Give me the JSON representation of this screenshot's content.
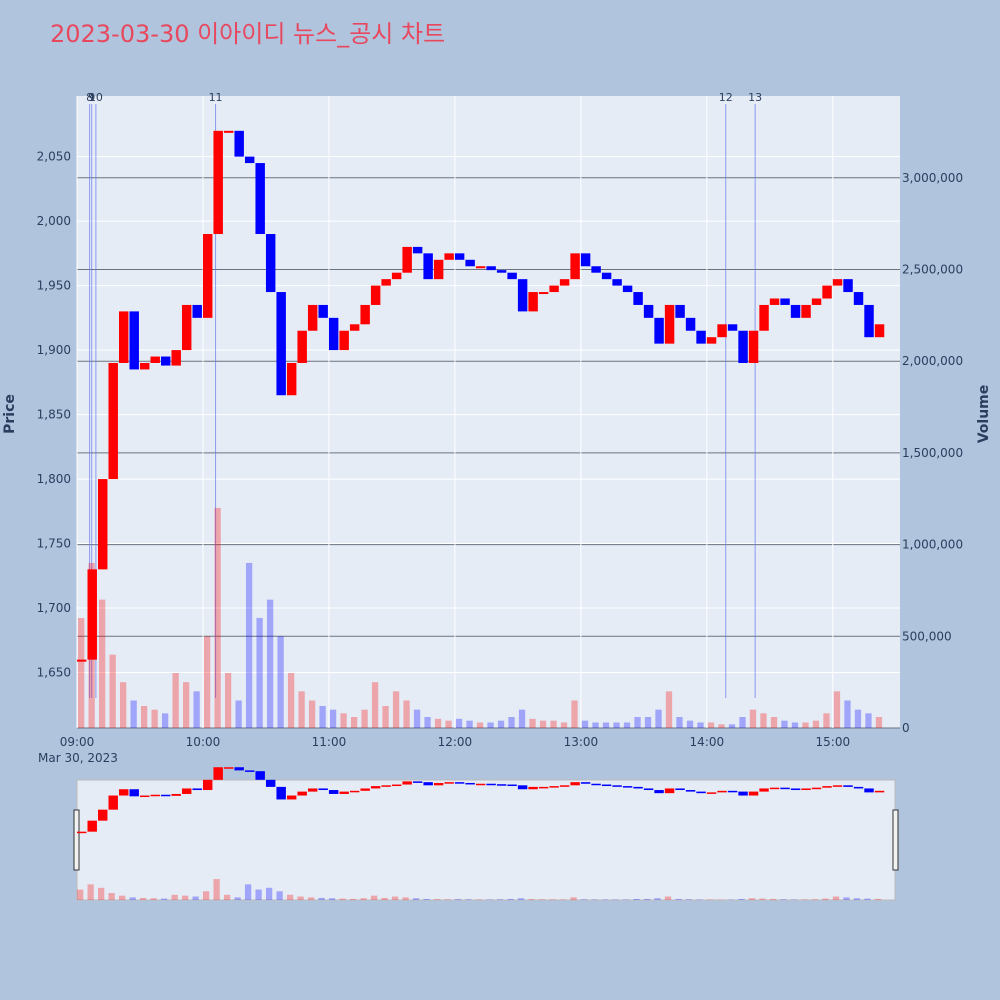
{
  "chart_data": {
    "type": "candlestick",
    "title": "2023-03-30 이아이디 뉴스_공시 차트",
    "y_label": "Price",
    "y2_label": "Volume",
    "x_date_label": "Mar 30, 2023",
    "up_color": "#ff0000",
    "down_color": "#0000ff",
    "x": [
      "09:00",
      "09:05",
      "09:10",
      "09:15",
      "09:20",
      "09:25",
      "09:30",
      "09:35",
      "09:40",
      "09:45",
      "09:50",
      "09:55",
      "10:00",
      "10:05",
      "10:10",
      "10:15",
      "10:20",
      "10:25",
      "10:30",
      "10:35",
      "10:40",
      "10:45",
      "10:50",
      "10:55",
      "11:00",
      "11:05",
      "11:10",
      "11:15",
      "11:20",
      "11:25",
      "11:30",
      "11:35",
      "11:40",
      "11:45",
      "11:50",
      "11:55",
      "12:00",
      "12:05",
      "12:10",
      "12:15",
      "12:20",
      "12:25",
      "12:30",
      "12:35",
      "12:40",
      "12:45",
      "12:50",
      "12:55",
      "13:00",
      "13:05",
      "13:10",
      "13:15",
      "13:20",
      "13:25",
      "13:30",
      "13:35",
      "13:40",
      "13:45",
      "13:50",
      "13:55",
      "14:00",
      "14:05",
      "14:10",
      "14:15",
      "14:20",
      "14:25",
      "14:30",
      "14:35",
      "14:40",
      "14:45",
      "14:50",
      "14:55",
      "15:00",
      "15:05",
      "15:10",
      "15:15",
      "15:20"
    ],
    "price": [
      1660,
      1730,
      1800,
      1890,
      1930,
      1885,
      1890,
      1895,
      1888,
      1900,
      1935,
      1925,
      1990,
      2070,
      2070,
      2050,
      2045,
      1990,
      1945,
      1865,
      1890,
      1915,
      1935,
      1925,
      1900,
      1915,
      1920,
      1935,
      1950,
      1955,
      1960,
      1980,
      1975,
      1955,
      1970,
      1975,
      1970,
      1965,
      1965,
      1962,
      1960,
      1955,
      1930,
      1945,
      1945,
      1950,
      1955,
      1975,
      1965,
      1960,
      1955,
      1950,
      1945,
      1935,
      1925,
      1905,
      1935,
      1925,
      1915,
      1905,
      1910,
      1920,
      1915,
      1890,
      1915,
      1935,
      1940,
      1935,
      1925,
      1935,
      1940,
      1950,
      1955,
      1945,
      1935,
      1910,
      1920
    ],
    "volume": [
      600000,
      900000,
      700000,
      400000,
      250000,
      150000,
      120000,
      100000,
      80000,
      300000,
      250000,
      200000,
      500000,
      1200000,
      300000,
      150000,
      900000,
      600000,
      700000,
      500000,
      300000,
      200000,
      150000,
      120000,
      100000,
      80000,
      60000,
      100000,
      250000,
      120000,
      200000,
      150000,
      100000,
      60000,
      50000,
      40000,
      50000,
      40000,
      30000,
      30000,
      40000,
      60000,
      100000,
      50000,
      40000,
      40000,
      30000,
      150000,
      40000,
      30000,
      30000,
      30000,
      30000,
      60000,
      60000,
      100000,
      200000,
      60000,
      40000,
      30000,
      30000,
      20000,
      20000,
      60000,
      100000,
      80000,
      60000,
      40000,
      30000,
      30000,
      40000,
      80000,
      200000,
      150000,
      100000,
      80000,
      60000
    ],
    "xlim": [
      "09:00",
      "15:32"
    ],
    "xticks": [
      "09:00",
      "10:00",
      "11:00",
      "12:00",
      "13:00",
      "14:00",
      "15:00"
    ],
    "ylim": [
      1607,
      2097
    ],
    "yticks": [
      {
        "value": 1650,
        "label": "1,650"
      },
      {
        "value": 1700,
        "label": "1,700"
      },
      {
        "value": 1750,
        "label": "1,750"
      },
      {
        "value": 1800,
        "label": "1,800"
      },
      {
        "value": 1850,
        "label": "1,850"
      },
      {
        "value": 1900,
        "label": "1,900"
      },
      {
        "value": 1950,
        "label": "1,950"
      },
      {
        "value": 2000,
        "label": "2,000"
      },
      {
        "value": 2050,
        "label": "2,050"
      }
    ],
    "y2lim": [
      0,
      3446000
    ],
    "y2ticks": [
      0,
      {
        "value": 500000,
        "label": "500,000"
      },
      {
        "value": 1000000,
        "label": "1,000,000"
      },
      {
        "value": 1500000,
        "label": "1,500,000"
      },
      {
        "value": 2000000,
        "label": "2,000,000"
      },
      {
        "value": 2500000,
        "label": "2,500,000"
      },
      {
        "value": 3000000,
        "label": "3,000,000"
      }
    ],
    "annotations": [
      {
        "x": "09:06",
        "label": "8"
      },
      {
        "x": "09:07",
        "label": "9"
      },
      {
        "x": "09:09",
        "label": "10"
      },
      {
        "x": "10:06",
        "label": "11"
      },
      {
        "x": "14:09",
        "label": "12"
      },
      {
        "x": "14:23",
        "label": "13"
      }
    ]
  }
}
